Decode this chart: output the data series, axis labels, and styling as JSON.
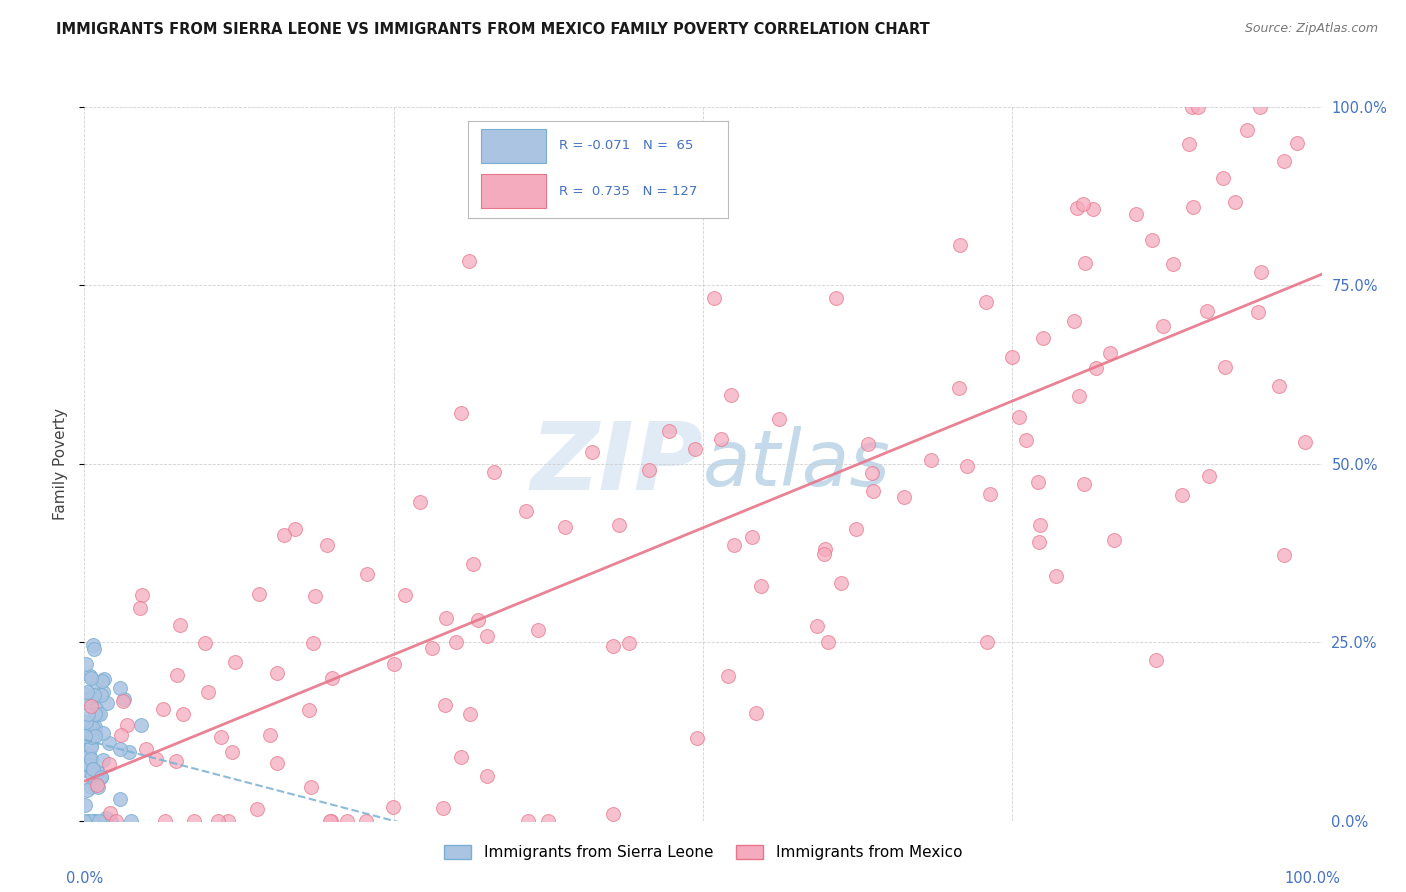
{
  "title": "IMMIGRANTS FROM SIERRA LEONE VS IMMIGRANTS FROM MEXICO FAMILY POVERTY CORRELATION CHART",
  "source": "Source: ZipAtlas.com",
  "ylabel": "Family Poverty",
  "legend_label1": "Immigrants from Sierra Leone",
  "legend_label2": "Immigrants from Mexico",
  "r1": -0.071,
  "n1": 65,
  "r2": 0.735,
  "n2": 127,
  "color_sl": "#aac4e2",
  "color_mx": "#f5abbe",
  "color_sl_line": "#7aafd4",
  "color_mx_line": "#e8758a",
  "title_fontsize": 10.5,
  "axis_label_color": "#4472c4",
  "grid_color": "#cccccc",
  "watermark_color": "#c5d8ec",
  "watermark_alpha": 0.5
}
